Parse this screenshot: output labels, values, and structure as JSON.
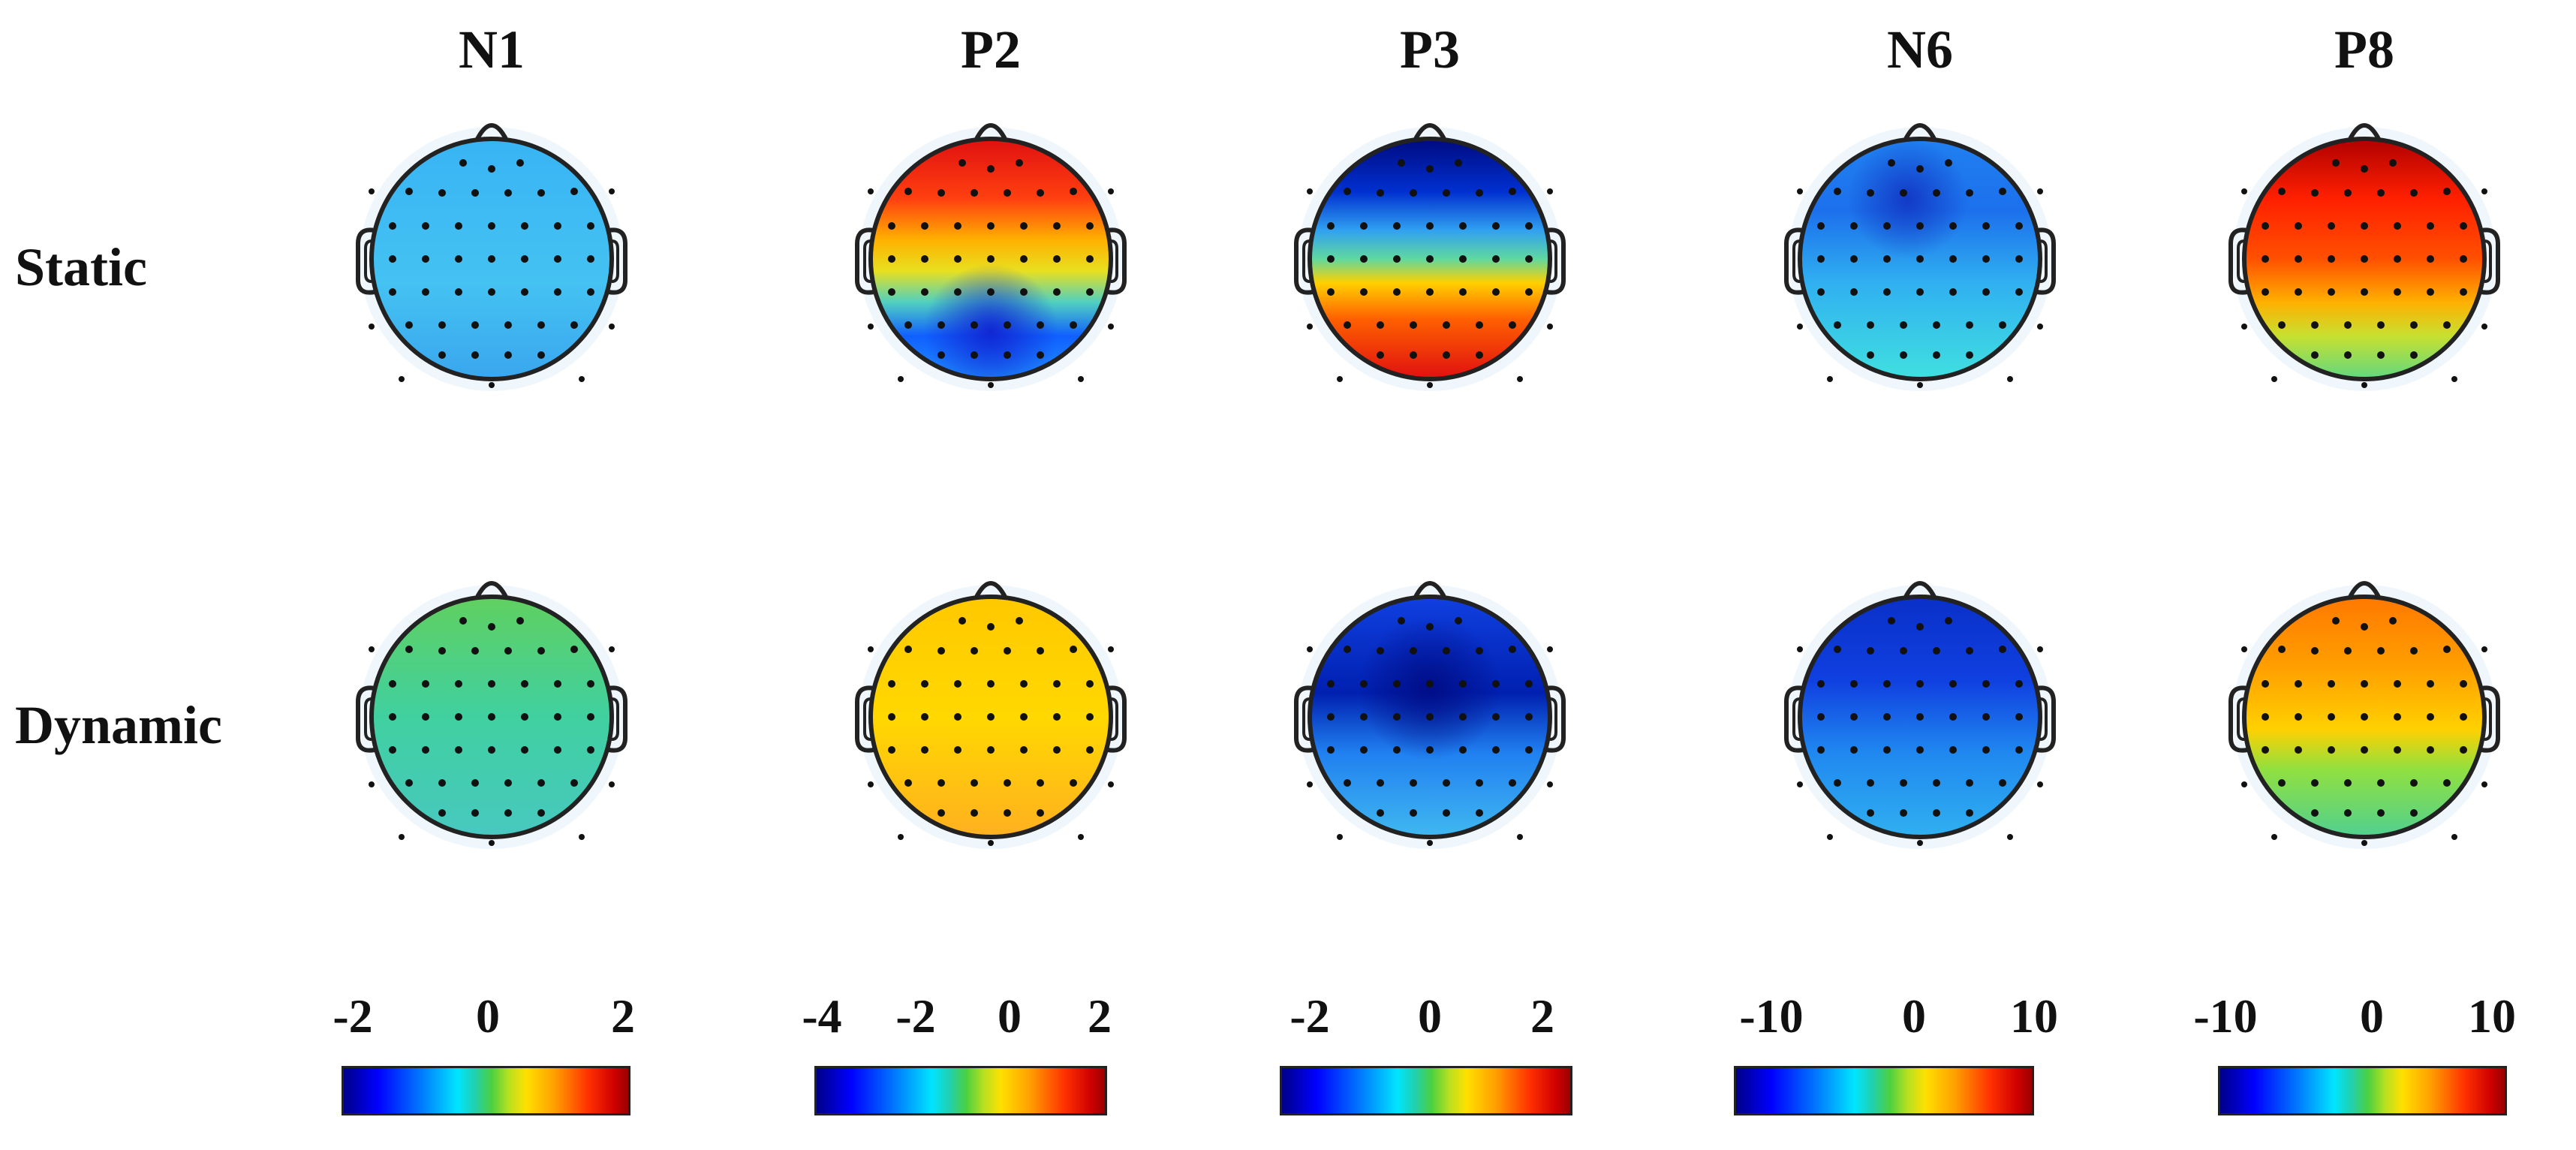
{
  "components": [
    {
      "name": "N1",
      "scale_ticks": [
        "-2",
        "0",
        "2"
      ],
      "static_topography": "uniform-light-blue",
      "dynamic_topography": "uniform-green"
    },
    {
      "name": "P2",
      "scale_ticks": [
        "-4",
        "-2",
        "0",
        "2"
      ],
      "static_topography": "red-frontal-blue-posterior",
      "dynamic_topography": "uniform-yellow"
    },
    {
      "name": "P3",
      "scale_ticks": [
        "-2",
        "0",
        "2"
      ],
      "static_topography": "blue-frontal-red-posterior",
      "dynamic_topography": "blue-central"
    },
    {
      "name": "N6",
      "scale_ticks": [
        "-10",
        "0",
        "10"
      ],
      "static_topography": "blue-frontal-cyan-posterior",
      "dynamic_topography": "deep-blue-frontal"
    },
    {
      "name": "P8",
      "scale_ticks": [
        "-10",
        "0",
        "10"
      ],
      "static_topography": "red-frontal-green-posterior",
      "dynamic_topography": "orange-frontal-green-posterior"
    }
  ],
  "conditions": [
    {
      "label": "Static"
    },
    {
      "label": "Dynamic"
    }
  ],
  "colormap": [
    "#00008a",
    "#0000ff",
    "#0080ff",
    "#00e5ff",
    "#4cd040",
    "#ffe000",
    "#ffa000",
    "#ff3000",
    "#9a0000"
  ],
  "head_outline_color": "#222222",
  "electrode_color": "#111111"
}
